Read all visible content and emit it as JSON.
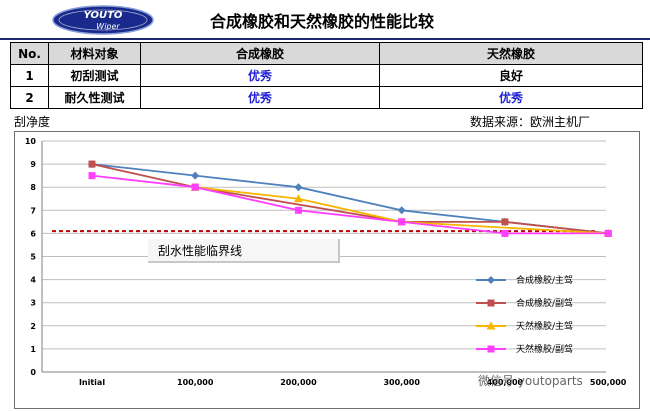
{
  "logo": {
    "line1": "YOUTO",
    "line2": "Wiper"
  },
  "title": "合成橡胶和天然橡胶的性能比较",
  "table": {
    "headers": [
      "No.",
      "材料对象",
      "合成橡胶",
      "天然橡胶"
    ],
    "rows": [
      [
        "1",
        "初刮测试",
        "优秀",
        "良好"
      ],
      [
        "2",
        "耐久性测试",
        "优秀",
        "优秀"
      ]
    ],
    "blue_cells": [
      [
        0,
        2
      ],
      [
        1,
        2
      ],
      [
        1,
        3
      ]
    ]
  },
  "ylabel": "刮净度",
  "source": "数据来源：欧洲主机厂",
  "colors": {
    "synthetic_main": "#4f81bd",
    "synthetic_sub": "#c0504d",
    "natural_main": "#f7b500",
    "natural_sub": "#ff40ff",
    "threshold": "#c00000",
    "header_bg": "#d9d9d9",
    "blue_text": "#1f1fd6"
  },
  "chart_data": {
    "type": "line",
    "categories": [
      "Initial",
      "100,000",
      "200,000",
      "300,000",
      "400,000",
      "500,000"
    ],
    "ylim": [
      0,
      10
    ],
    "yticks": [
      0,
      1,
      2,
      3,
      4,
      5,
      6,
      7,
      8,
      9,
      10
    ],
    "grid": true,
    "legend_position": "right",
    "series": [
      {
        "name": "合成橡胶/主驾",
        "values": [
          9,
          8.5,
          8,
          7,
          6.5,
          6
        ],
        "marker": "diamond",
        "color": "#4f81bd"
      },
      {
        "name": "合成橡胶/副驾",
        "values": [
          9,
          8,
          null,
          6.5,
          6.5,
          6
        ],
        "marker": "square",
        "color": "#c0504d"
      },
      {
        "name": "天然橡胶/主驾",
        "values": [
          null,
          8,
          7.5,
          6.5,
          null,
          6
        ],
        "marker": "triangle",
        "color": "#f7b500"
      },
      {
        "name": "天然橡胶/副驾",
        "values": [
          8.5,
          8,
          7,
          6.5,
          6,
          6
        ],
        "marker": "square",
        "color": "#ff40ff"
      }
    ],
    "threshold": {
      "value": 6.1,
      "label": "刮水性能临界线"
    }
  },
  "watermark": "微信号 youtoparts"
}
